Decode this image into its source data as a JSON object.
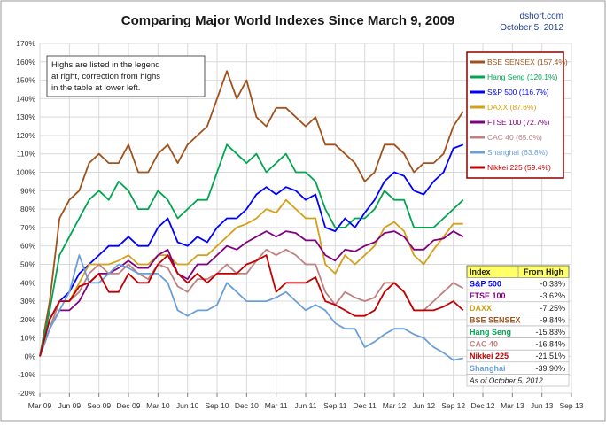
{
  "header": {
    "title": "Comparing Major World Indexes Since March 9, 2009",
    "source": "dshort.com",
    "date": "October 5, 2012"
  },
  "note": {
    "lines": [
      "Highs are listed in the legend",
      "at right, correction from highs",
      "in the table at lower left."
    ]
  },
  "chart_data": {
    "type": "line",
    "title": "Comparing Major World Indexes Since March 9, 2009",
    "xlabel": "",
    "ylabel": "",
    "x_ticks": [
      "Mar 09",
      "Jun 09",
      "Sep 09",
      "Dec 09",
      "Mar 10",
      "Jun 10",
      "Sep 10",
      "Dec 10",
      "Mar 11",
      "Jun 11",
      "Sep 11",
      "Dec 11",
      "Mar 12",
      "Jun 12",
      "Sep 12",
      "Dec 12",
      "Mar 13",
      "Jun 13",
      "Sep 13"
    ],
    "y_ticks": [
      "-20%",
      "-10%",
      "0%",
      "10%",
      "20%",
      "30%",
      "40%",
      "50%",
      "60%",
      "70%",
      "80%",
      "90%",
      "100%",
      "110%",
      "120%",
      "130%",
      "140%",
      "150%",
      "160%",
      "170%"
    ],
    "ylim": [
      -20,
      170
    ],
    "grid": true,
    "legend_position": "top-right",
    "series": [
      {
        "name": "BSE SENSEX (157.4%)",
        "color": "#a0521c",
        "x": [
          "Mar 09",
          "Apr 09",
          "May 09",
          "Jun 09",
          "Jul 09",
          "Aug 09",
          "Sep 09",
          "Oct 09",
          "Nov 09",
          "Dec 09",
          "Jan 10",
          "Feb 10",
          "Mar 10",
          "Apr 10",
          "May 10",
          "Jun 10",
          "Jul 10",
          "Aug 10",
          "Sep 10",
          "Oct 10",
          "Nov 10",
          "Dec 10",
          "Jan 11",
          "Feb 11",
          "Mar 11",
          "Apr 11",
          "May 11",
          "Jun 11",
          "Jul 11",
          "Aug 11",
          "Sep 11",
          "Oct 11",
          "Nov 11",
          "Dec 11",
          "Jan 12",
          "Feb 12",
          "Mar 12",
          "Apr 12",
          "May 12",
          "Jun 12",
          "Jul 12",
          "Aug 12",
          "Sep 12",
          "Oct 12"
        ],
        "y": [
          0,
          30,
          75,
          85,
          90,
          105,
          110,
          105,
          105,
          115,
          100,
          100,
          110,
          115,
          105,
          115,
          120,
          125,
          140,
          155,
          140,
          150,
          130,
          125,
          135,
          135,
          130,
          125,
          130,
          115,
          115,
          110,
          105,
          95,
          100,
          115,
          115,
          110,
          100,
          105,
          105,
          110,
          125,
          133
        ]
      },
      {
        "name": "Hang Seng (120.1%)",
        "color": "#00a550",
        "x": [
          "Mar 09",
          "Apr 09",
          "May 09",
          "Jun 09",
          "Jul 09",
          "Aug 09",
          "Sep 09",
          "Oct 09",
          "Nov 09",
          "Dec 09",
          "Jan 10",
          "Feb 10",
          "Mar 10",
          "Apr 10",
          "May 10",
          "Jun 10",
          "Jul 10",
          "Aug 10",
          "Sep 10",
          "Oct 10",
          "Nov 10",
          "Dec 10",
          "Jan 11",
          "Feb 11",
          "Mar 11",
          "Apr 11",
          "May 11",
          "Jun 11",
          "Jul 11",
          "Aug 11",
          "Sep 11",
          "Oct 11",
          "Nov 11",
          "Dec 11",
          "Jan 12",
          "Feb 12",
          "Mar 12",
          "Apr 12",
          "May 12",
          "Jun 12",
          "Jul 12",
          "Aug 12",
          "Sep 12",
          "Oct 12"
        ],
        "y": [
          0,
          25,
          55,
          65,
          75,
          85,
          90,
          85,
          95,
          90,
          80,
          80,
          90,
          85,
          75,
          80,
          85,
          85,
          100,
          115,
          110,
          105,
          110,
          100,
          105,
          110,
          100,
          100,
          95,
          80,
          70,
          70,
          75,
          75,
          80,
          90,
          85,
          85,
          70,
          70,
          70,
          75,
          80,
          85
        ]
      },
      {
        "name": "S&P 500 (116.7%)",
        "color": "#0000ff",
        "x": [
          "Mar 09",
          "Apr 09",
          "May 09",
          "Jun 09",
          "Jul 09",
          "Aug 09",
          "Sep 09",
          "Oct 09",
          "Nov 09",
          "Dec 09",
          "Jan 10",
          "Feb 10",
          "Mar 10",
          "Apr 10",
          "May 10",
          "Jun 10",
          "Jul 10",
          "Aug 10",
          "Sep 10",
          "Oct 10",
          "Nov 10",
          "Dec 10",
          "Jan 11",
          "Feb 11",
          "Mar 11",
          "Apr 11",
          "May 11",
          "Jun 11",
          "Jul 11",
          "Aug 11",
          "Sep 11",
          "Oct 11",
          "Nov 11",
          "Dec 11",
          "Jan 12",
          "Feb 12",
          "Mar 12",
          "Apr 12",
          "May 12",
          "Jun 12",
          "Jul 12",
          "Aug 12",
          "Sep 12",
          "Oct 12"
        ],
        "y": [
          0,
          20,
          30,
          35,
          45,
          50,
          55,
          60,
          60,
          65,
          60,
          60,
          70,
          75,
          62,
          60,
          65,
          62,
          70,
          75,
          75,
          80,
          88,
          92,
          88,
          92,
          90,
          85,
          88,
          70,
          68,
          75,
          70,
          78,
          85,
          95,
          100,
          98,
          90,
          88,
          95,
          100,
          113,
          115
        ]
      },
      {
        "name": "DAXX (87.6%)",
        "color": "#d4a017",
        "x": [
          "Mar 09",
          "Apr 09",
          "May 09",
          "Jun 09",
          "Jul 09",
          "Aug 09",
          "Sep 09",
          "Oct 09",
          "Nov 09",
          "Dec 09",
          "Jan 10",
          "Feb 10",
          "Mar 10",
          "Apr 10",
          "May 10",
          "Jun 10",
          "Jul 10",
          "Aug 10",
          "Sep 10",
          "Oct 10",
          "Nov 10",
          "Dec 10",
          "Jan 11",
          "Feb 11",
          "Mar 11",
          "Apr 11",
          "May 11",
          "Jun 11",
          "Jul 11",
          "Aug 11",
          "Sep 11",
          "Oct 11",
          "Nov 11",
          "Dec 11",
          "Jan 12",
          "Feb 12",
          "Mar 12",
          "Apr 12",
          "May 12",
          "Jun 12",
          "Jul 12",
          "Aug 12",
          "Sep 12",
          "Oct 12"
        ],
        "y": [
          0,
          15,
          30,
          30,
          40,
          50,
          50,
          50,
          52,
          55,
          50,
          50,
          55,
          55,
          50,
          50,
          55,
          55,
          60,
          65,
          70,
          72,
          75,
          80,
          78,
          85,
          80,
          75,
          75,
          50,
          45,
          55,
          50,
          55,
          60,
          70,
          73,
          68,
          55,
          50,
          58,
          65,
          72,
          72
        ]
      },
      {
        "name": "FTSE 100 (72.7%)",
        "color": "#800080",
        "x": [
          "Mar 09",
          "Apr 09",
          "May 09",
          "Jun 09",
          "Jul 09",
          "Aug 09",
          "Sep 09",
          "Oct 09",
          "Nov 09",
          "Dec 09",
          "Jan 10",
          "Feb 10",
          "Mar 10",
          "Apr 10",
          "May 10",
          "Jun 10",
          "Jul 10",
          "Aug 10",
          "Sep 10",
          "Oct 10",
          "Nov 10",
          "Dec 10",
          "Jan 11",
          "Feb 11",
          "Mar 11",
          "Apr 11",
          "May 11",
          "Jun 11",
          "Jul 11",
          "Aug 11",
          "Sep 11",
          "Oct 11",
          "Nov 11",
          "Dec 11",
          "Jan 12",
          "Feb 12",
          "Mar 12",
          "Apr 12",
          "May 12",
          "Jun 12",
          "Jul 12",
          "Aug 12",
          "Sep 12",
          "Oct 12"
        ],
        "y": [
          0,
          15,
          25,
          25,
          30,
          40,
          45,
          45,
          48,
          52,
          48,
          48,
          55,
          58,
          45,
          42,
          50,
          50,
          55,
          60,
          58,
          62,
          65,
          68,
          65,
          68,
          67,
          63,
          63,
          55,
          52,
          58,
          57,
          60,
          62,
          67,
          68,
          65,
          58,
          58,
          63,
          64,
          68,
          65
        ]
      },
      {
        "name": "CAC 40 (65.0%)",
        "color": "#c08080",
        "x": [
          "Mar 09",
          "Apr 09",
          "May 09",
          "Jun 09",
          "Jul 09",
          "Aug 09",
          "Sep 09",
          "Oct 09",
          "Nov 09",
          "Dec 09",
          "Jan 10",
          "Feb 10",
          "Mar 10",
          "Apr 10",
          "May 10",
          "Jun 10",
          "Jul 10",
          "Aug 10",
          "Sep 10",
          "Oct 10",
          "Nov 10",
          "Dec 10",
          "Jan 11",
          "Feb 11",
          "Mar 11",
          "Apr 11",
          "May 11",
          "Jun 11",
          "Jul 11",
          "Aug 11",
          "Sep 11",
          "Oct 11",
          "Nov 11",
          "Dec 11",
          "Jan 12",
          "Feb 12",
          "Mar 12",
          "Apr 12",
          "May 12",
          "Jun 12",
          "Jul 12",
          "Aug 12",
          "Sep 12",
          "Oct 12"
        ],
        "y": [
          0,
          15,
          30,
          30,
          35,
          45,
          50,
          45,
          45,
          50,
          45,
          42,
          50,
          48,
          38,
          35,
          42,
          42,
          45,
          50,
          45,
          45,
          52,
          58,
          55,
          58,
          55,
          50,
          50,
          35,
          28,
          35,
          32,
          30,
          32,
          40,
          40,
          35,
          25,
          25,
          30,
          35,
          40,
          37
        ]
      },
      {
        "name": "Shanghai (63.8%)",
        "color": "#6a9fd8",
        "x": [
          "Mar 09",
          "Apr 09",
          "May 09",
          "Jun 09",
          "Jul 09",
          "Aug 09",
          "Sep 09",
          "Oct 09",
          "Nov 09",
          "Dec 09",
          "Jan 10",
          "Feb 10",
          "Mar 10",
          "Apr 10",
          "May 10",
          "Jun 10",
          "Jul 10",
          "Aug 10",
          "Sep 10",
          "Oct 10",
          "Nov 10",
          "Dec 10",
          "Jan 11",
          "Feb 11",
          "Mar 11",
          "Apr 11",
          "May 11",
          "Jun 11",
          "Jul 11",
          "Aug 11",
          "Sep 11",
          "Oct 11",
          "Nov 11",
          "Dec 11",
          "Jan 12",
          "Feb 12",
          "Mar 12",
          "Apr 12",
          "May 12",
          "Jun 12",
          "Jul 12",
          "Aug 12",
          "Sep 12",
          "Oct 12"
        ],
        "y": [
          0,
          15,
          25,
          35,
          55,
          40,
          40,
          45,
          50,
          48,
          45,
          45,
          45,
          40,
          25,
          22,
          25,
          25,
          28,
          40,
          35,
          30,
          30,
          30,
          32,
          35,
          30,
          25,
          28,
          25,
          18,
          15,
          15,
          5,
          8,
          12,
          15,
          15,
          12,
          10,
          5,
          2,
          -2,
          -1
        ]
      },
      {
        "name": "Nikkei 225 (59.4%)",
        "color": "#c00000",
        "x": [
          "Mar 09",
          "Apr 09",
          "May 09",
          "Jun 09",
          "Jul 09",
          "Aug 09",
          "Sep 09",
          "Oct 09",
          "Nov 09",
          "Dec 09",
          "Jan 10",
          "Feb 10",
          "Mar 10",
          "Apr 10",
          "May 10",
          "Jun 10",
          "Jul 10",
          "Aug 10",
          "Sep 10",
          "Oct 10",
          "Nov 10",
          "Dec 10",
          "Jan 11",
          "Feb 11",
          "Mar 11",
          "Apr 11",
          "May 11",
          "Jun 11",
          "Jul 11",
          "Aug 11",
          "Sep 11",
          "Oct 11",
          "Nov 11",
          "Dec 11",
          "Jan 12",
          "Feb 12",
          "Mar 12",
          "Apr 12",
          "May 12",
          "Jun 12",
          "Jul 12",
          "Aug 12",
          "Sep 12",
          "Oct 12"
        ],
        "y": [
          0,
          20,
          30,
          30,
          38,
          40,
          45,
          35,
          35,
          45,
          40,
          40,
          50,
          55,
          45,
          40,
          45,
          40,
          45,
          45,
          45,
          50,
          52,
          55,
          35,
          40,
          40,
          40,
          43,
          30,
          28,
          25,
          22,
          22,
          25,
          35,
          40,
          35,
          25,
          25,
          25,
          27,
          30,
          25
        ]
      }
    ]
  },
  "table": {
    "header_index": "Index",
    "header_value": "From High",
    "rows": [
      {
        "name": "S&P 500",
        "value": "-0.33%",
        "color": "#0000ff"
      },
      {
        "name": "FTSE 100",
        "value": "-3.62%",
        "color": "#800080"
      },
      {
        "name": "DAXX",
        "value": "-7.25%",
        "color": "#d4a017"
      },
      {
        "name": "BSE SENSEX",
        "value": "-9.84%",
        "color": "#a0521c"
      },
      {
        "name": "Hang Seng",
        "value": "-15.83%",
        "color": "#00a550"
      },
      {
        "name": "CAC 40",
        "value": "-16.84%",
        "color": "#c08080"
      },
      {
        "name": "Nikkei 225",
        "value": "-21.51%",
        "color": "#c00000"
      },
      {
        "name": "Shanghai",
        "value": "-39.90%",
        "color": "#6a9fd8"
      }
    ],
    "footnote": "As of October 5, 2012"
  }
}
